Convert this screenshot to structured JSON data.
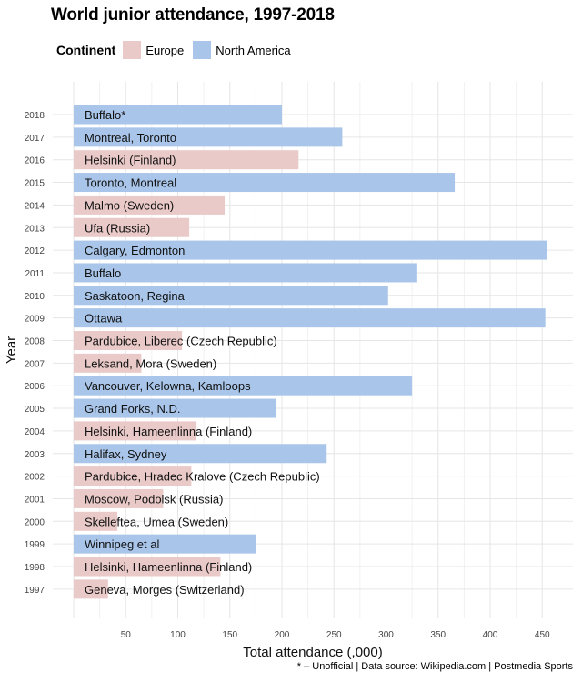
{
  "chart_data": {
    "type": "bar",
    "orientation": "horizontal",
    "title": "World junior attendance, 1997-2018",
    "xlabel": "Total attendance (,000)",
    "ylabel": "Year",
    "legend_title": "Continent",
    "legend_position": "top-left",
    "grid": true,
    "xlim": [
      0,
      470
    ],
    "xticks": [
      "50",
      "100",
      "150",
      "200",
      "250",
      "300",
      "350",
      "400",
      "450"
    ],
    "categories": [
      "2018",
      "2017",
      "2016",
      "2015",
      "2014",
      "2013",
      "2012",
      "2011",
      "2010",
      "2009",
      "2008",
      "2007",
      "2006",
      "2005",
      "2004",
      "2003",
      "2002",
      "2001",
      "2000",
      "1999",
      "1998",
      "1997"
    ],
    "labels": [
      "Buffalo*",
      "Montreal, Toronto",
      "Helsinki (Finland)",
      "Toronto, Montreal",
      "Malmo (Sweden)",
      "Ufa (Russia)",
      "Calgary, Edmonton",
      "Buffalo",
      "Saskatoon, Regina",
      "Ottawa",
      "Pardubice, Liberec (Czech Republic)",
      "Leksand, Mora (Sweden)",
      "Vancouver, Kelowna, Kamloops",
      "Grand Forks, N.D.",
      "Helsinki, Hameenlinna (Finland)",
      "Halifax, Sydney",
      "Pardubice, Hradec Kralove (Czech Republic)",
      "Moscow, Podolsk (Russia)",
      "Skelleftea, Umea (Sweden)",
      "Winnipeg et al",
      "Helsinki, Hameenlinna (Finland)",
      "Geneva, Morges (Switzerland)"
    ],
    "values": [
      200,
      258,
      216,
      366,
      145,
      111,
      455,
      330,
      302,
      453,
      104,
      65,
      325,
      194,
      118,
      243,
      113,
      86,
      42,
      175,
      141,
      33
    ],
    "continent": [
      "North America",
      "North America",
      "Europe",
      "North America",
      "Europe",
      "Europe",
      "North America",
      "North America",
      "North America",
      "North America",
      "Europe",
      "Europe",
      "North America",
      "North America",
      "Europe",
      "North America",
      "Europe",
      "Europe",
      "Europe",
      "North America",
      "Europe",
      "Europe"
    ],
    "series": [
      {
        "name": "Europe",
        "color": "#e9cac8"
      },
      {
        "name": "North America",
        "color": "#a9c6ea"
      }
    ]
  },
  "caption": "* – Unofficial | Data source: Wikipedia.com | Postmedia Sports"
}
